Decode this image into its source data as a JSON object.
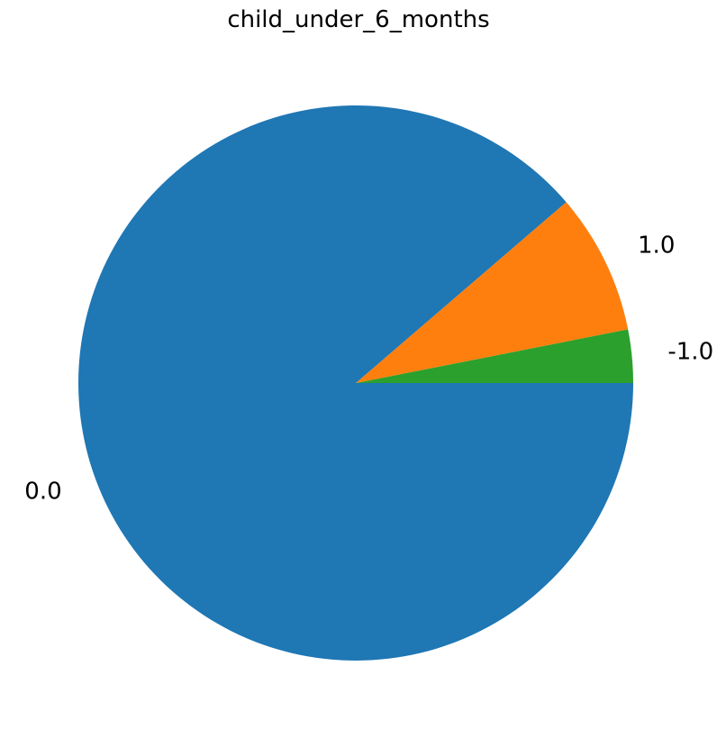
{
  "chart_data": {
    "type": "pie",
    "title": "child_under_6_months",
    "labels": [
      "-1.0",
      "1.0",
      "0.0"
    ],
    "values": [
      3.1,
      8.2,
      88.7
    ],
    "colors": [
      "#2ca02c",
      "#ff7f0e",
      "#1f77b4"
    ],
    "start_angle_deg": 0,
    "direction": "counterclockwise"
  }
}
